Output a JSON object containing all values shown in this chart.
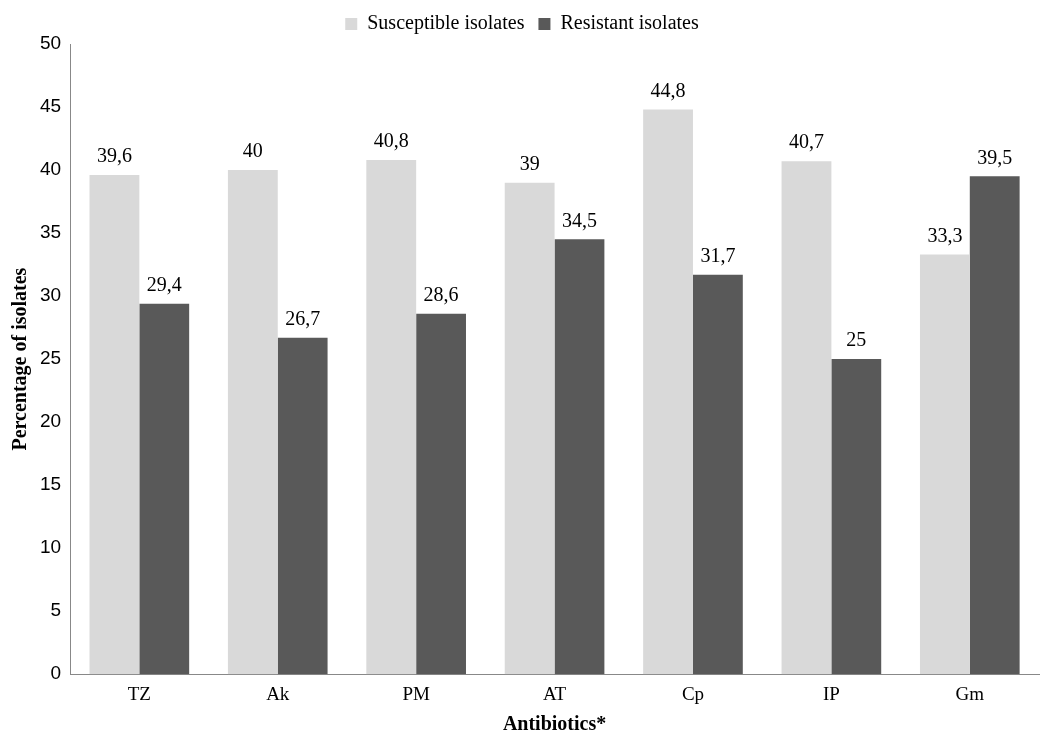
{
  "chart_data": {
    "type": "bar",
    "xlabel": "Antibiotics*",
    "ylabel": "Percentage of isolates",
    "categories": [
      "TZ",
      "Ak",
      "PM",
      "AT",
      "Cp",
      "IP",
      "Gm"
    ],
    "series": [
      {
        "name": "Susceptible isolates",
        "color": "#d9d9d9",
        "values": [
          39.6,
          40,
          40.8,
          39,
          44.8,
          40.7,
          33.3
        ],
        "value_labels": [
          "39,6",
          "40",
          "40,8",
          "39",
          "44,8",
          "40,7",
          "33,3"
        ]
      },
      {
        "name": "Resistant isolates",
        "color": "#595959",
        "values": [
          29.4,
          26.7,
          28.6,
          34.5,
          31.7,
          25,
          39.5
        ],
        "value_labels": [
          "29,4",
          "26,7",
          "28,6",
          "34,5",
          "31,7",
          "25",
          "39,5"
        ]
      }
    ],
    "ylim": [
      0,
      50
    ],
    "yticks": [
      0,
      5,
      10,
      15,
      20,
      25,
      30,
      35,
      40,
      45,
      50
    ],
    "grid": false,
    "legend": "top"
  }
}
